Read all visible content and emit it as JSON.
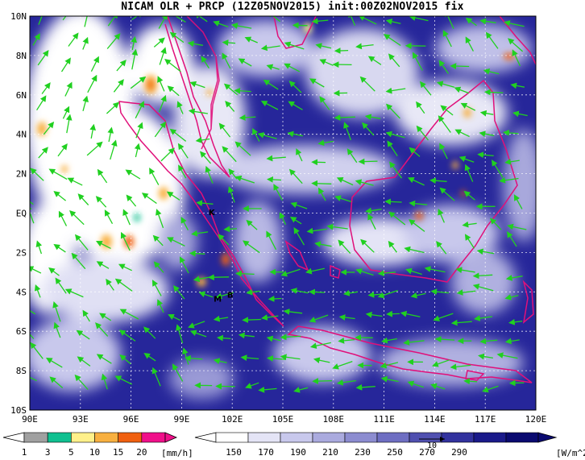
{
  "title": "NICAM OLR + PRCP (12Z05NOV2015) init:00Z02NOV2015 fix",
  "lat_labels": [
    "10N",
    "8N",
    "6N",
    "4N",
    "2N",
    "EQ",
    "2S",
    "4S",
    "6S",
    "8S",
    "10S"
  ],
  "lon_labels": [
    "90E",
    "93E",
    "96E",
    "99E",
    "102E",
    "105E",
    "108E",
    "111E",
    "114E",
    "117E",
    "120E"
  ],
  "place_labels": [
    {
      "text": "K",
      "lon": 100.6,
      "lat": -0.1
    },
    {
      "text": "M",
      "lon": 100.9,
      "lat": -4.5
    },
    {
      "text": "B",
      "lon": 101.7,
      "lat": -4.3
    }
  ],
  "precip_legend": {
    "ticks": [
      "1",
      "3",
      "5",
      "10",
      "15",
      "20"
    ],
    "unit": "[mm/h]",
    "colors": [
      "#a0a0a0",
      "#10c090",
      "#fff08a",
      "#f8b040",
      "#f06010",
      "#f0108a"
    ]
  },
  "olr_legend": {
    "ticks": [
      "150",
      "170",
      "190",
      "210",
      "230",
      "250",
      "270",
      "290"
    ],
    "unit": "[W/m^2]",
    "colors": [
      "#ffffff",
      "#e4e4f6",
      "#c8c8ec",
      "#aaaade",
      "#8c8cd0",
      "#6e6ec2",
      "#5050b0",
      "#32329e",
      "#1a1a8a",
      "#0a0a70"
    ]
  },
  "vector_ref_label": "10",
  "colors": {
    "ocean_blue": "#23238f",
    "coast": "#e0107a",
    "wind": "#20d020",
    "grid": "#ffffff"
  }
}
